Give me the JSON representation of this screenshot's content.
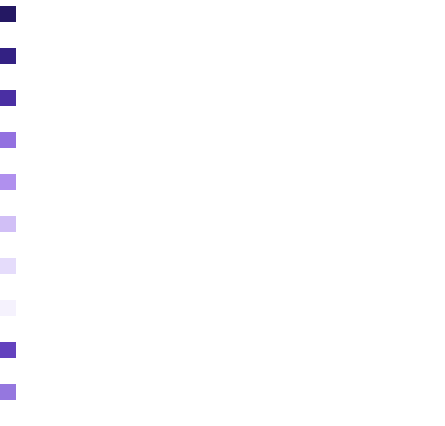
{
  "palette": {
    "swatches": [
      {
        "color": "#241863"
      },
      {
        "color": "#332183"
      },
      {
        "color": "#4a2fa3"
      },
      {
        "color": "#9371e0"
      },
      {
        "color": "#b090ee"
      },
      {
        "color": "#d1bff6"
      },
      {
        "color": "#e5dcfb"
      },
      {
        "color": "#f5f2fd"
      },
      {
        "color": "#6342be"
      },
      {
        "color": "#9577df"
      }
    ]
  }
}
